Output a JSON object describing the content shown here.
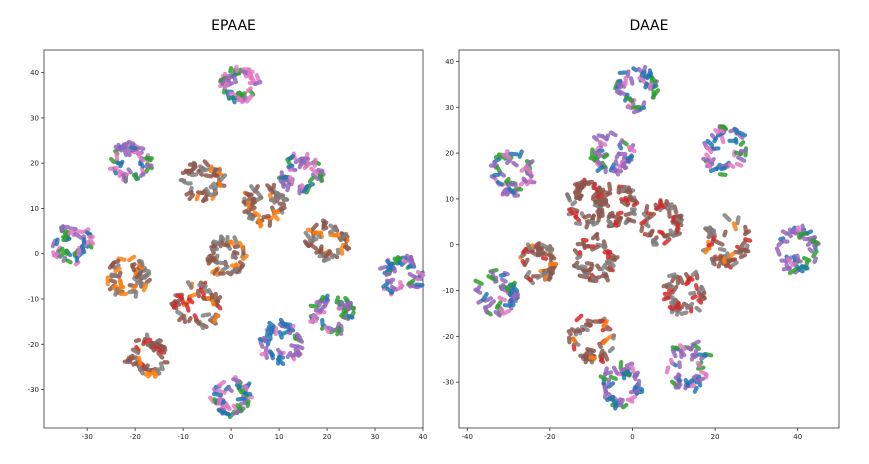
{
  "chart_data": [
    {
      "type": "scatter",
      "title": "EPAAE",
      "xlabel": "",
      "ylabel": "",
      "xlim": [
        -39,
        40
      ],
      "ylim": [
        -38.5,
        45
      ],
      "xticks": [
        -30,
        -20,
        -10,
        0,
        10,
        20,
        30,
        40
      ],
      "yticks": [
        -30,
        -20,
        -10,
        0,
        10,
        20,
        30,
        40
      ],
      "grid": false,
      "colors": [
        "#1f77b4",
        "#ff7f0e",
        "#2ca02c",
        "#d62728",
        "#9467bd",
        "#8c564b",
        "#e377c2",
        "#7f7f7f"
      ],
      "clusters": [
        {
          "center": [
            2,
            37.5
          ],
          "radius": 3.5,
          "colors": [
            "#e377c2",
            "#9467bd",
            "#2ca02c",
            "#1f77b4"
          ]
        },
        {
          "center": [
            -21,
            20.5
          ],
          "radius": 3.8,
          "colors": [
            "#9467bd",
            "#e377c2",
            "#2ca02c",
            "#1f77b4"
          ]
        },
        {
          "center": [
            14.5,
            17.5
          ],
          "radius": 4,
          "colors": [
            "#9467bd",
            "#e377c2",
            "#2ca02c",
            "#1f77b4"
          ]
        },
        {
          "center": [
            -6,
            16
          ],
          "radius": 4,
          "colors": [
            "#8c564b",
            "#7f7f7f",
            "#ff7f0e"
          ]
        },
        {
          "center": [
            7,
            11
          ],
          "radius": 4,
          "colors": [
            "#8c564b",
            "#7f7f7f",
            "#ff7f0e"
          ]
        },
        {
          "center": [
            -33,
            2
          ],
          "radius": 4,
          "colors": [
            "#9467bd",
            "#1f77b4",
            "#e377c2",
            "#2ca02c"
          ]
        },
        {
          "center": [
            -1,
            -0.5
          ],
          "radius": 3.8,
          "colors": [
            "#8c564b",
            "#7f7f7f",
            "#ff7f0e"
          ]
        },
        {
          "center": [
            20,
            2.5
          ],
          "radius": 4,
          "colors": [
            "#8c564b",
            "#7f7f7f",
            "#ff7f0e"
          ]
        },
        {
          "center": [
            35.5,
            -5
          ],
          "radius": 4,
          "colors": [
            "#9467bd",
            "#1f77b4",
            "#e377c2",
            "#2ca02c"
          ]
        },
        {
          "center": [
            -21.5,
            -5
          ],
          "radius": 4,
          "colors": [
            "#8c564b",
            "#7f7f7f",
            "#ff7f0e"
          ]
        },
        {
          "center": [
            -7,
            -11.5
          ],
          "radius": 4.5,
          "colors": [
            "#8c564b",
            "#7f7f7f",
            "#ff7f0e",
            "#d62728"
          ]
        },
        {
          "center": [
            21,
            -13
          ],
          "radius": 4,
          "colors": [
            "#9467bd",
            "#1f77b4",
            "#e377c2",
            "#2ca02c"
          ]
        },
        {
          "center": [
            10.5,
            -19.5
          ],
          "radius": 4,
          "colors": [
            "#9467bd",
            "#1f77b4",
            "#e377c2",
            "#2ca02c"
          ]
        },
        {
          "center": [
            -17.5,
            -22.5
          ],
          "radius": 4,
          "colors": [
            "#8c564b",
            "#7f7f7f",
            "#ff7f0e",
            "#d62728"
          ]
        },
        {
          "center": [
            0,
            -31.5
          ],
          "radius": 3.8,
          "colors": [
            "#9467bd",
            "#1f77b4",
            "#e377c2",
            "#2ca02c"
          ]
        }
      ]
    },
    {
      "type": "scatter",
      "title": "DAAE",
      "xlabel": "",
      "ylabel": "",
      "xlim": [
        -42,
        50
      ],
      "ylim": [
        -40,
        42.5
      ],
      "xticks": [
        -40,
        -20,
        0,
        20,
        40
      ],
      "yticks": [
        -30,
        -20,
        -10,
        0,
        10,
        20,
        30,
        40
      ],
      "grid": false,
      "colors": [
        "#1f77b4",
        "#ff7f0e",
        "#2ca02c",
        "#d62728",
        "#9467bd",
        "#8c564b",
        "#e377c2",
        "#7f7f7f"
      ],
      "clusters": [
        {
          "center": [
            1,
            34
          ],
          "radius": 4.5,
          "colors": [
            "#9467bd",
            "#1f77b4",
            "#e377c2",
            "#2ca02c"
          ]
        },
        {
          "center": [
            -5,
            20.5
          ],
          "radius": 4.5,
          "colors": [
            "#9467bd",
            "#1f77b4",
            "#e377c2",
            "#2ca02c"
          ]
        },
        {
          "center": [
            -29,
            15.5
          ],
          "radius": 4.5,
          "colors": [
            "#9467bd",
            "#e377c2",
            "#2ca02c",
            "#1f77b4"
          ]
        },
        {
          "center": [
            22.5,
            20.5
          ],
          "radius": 5,
          "colors": [
            "#9467bd",
            "#e377c2",
            "#2ca02c",
            "#1f77b4"
          ]
        },
        {
          "center": [
            -11,
            9
          ],
          "radius": 4.5,
          "colors": [
            "#8c564b",
            "#7f7f7f",
            "#d62728"
          ]
        },
        {
          "center": [
            -4,
            8.5
          ],
          "radius": 4.5,
          "colors": [
            "#8c564b",
            "#7f7f7f",
            "#d62728"
          ]
        },
        {
          "center": [
            7,
            4.5
          ],
          "radius": 4.5,
          "colors": [
            "#8c564b",
            "#7f7f7f",
            "#d62728"
          ]
        },
        {
          "center": [
            -23,
            -4
          ],
          "radius": 4,
          "colors": [
            "#8c564b",
            "#7f7f7f",
            "#d62728",
            "#ff7f0e"
          ]
        },
        {
          "center": [
            -9,
            -3
          ],
          "radius": 4.5,
          "colors": [
            "#8c564b",
            "#7f7f7f",
            "#d62728"
          ]
        },
        {
          "center": [
            23,
            0.5
          ],
          "radius": 5,
          "colors": [
            "#8c564b",
            "#7f7f7f",
            "#d62728",
            "#ff7f0e"
          ]
        },
        {
          "center": [
            40,
            -1
          ],
          "radius": 4.5,
          "colors": [
            "#9467bd",
            "#1f77b4",
            "#e377c2",
            "#2ca02c"
          ]
        },
        {
          "center": [
            -33,
            -10.5
          ],
          "radius": 4.5,
          "colors": [
            "#9467bd",
            "#1f77b4",
            "#e377c2",
            "#2ca02c"
          ]
        },
        {
          "center": [
            12.5,
            -10.5
          ],
          "radius": 4.5,
          "colors": [
            "#8c564b",
            "#7f7f7f",
            "#d62728"
          ]
        },
        {
          "center": [
            -10,
            -20.5
          ],
          "radius": 5,
          "colors": [
            "#8c564b",
            "#7f7f7f",
            "#d62728",
            "#ff7f0e"
          ]
        },
        {
          "center": [
            13.5,
            -26.5
          ],
          "radius": 5,
          "colors": [
            "#9467bd",
            "#1f77b4",
            "#e377c2",
            "#2ca02c"
          ]
        },
        {
          "center": [
            -3,
            -30.5
          ],
          "radius": 4.5,
          "colors": [
            "#9467bd",
            "#1f77b4",
            "#e377c2",
            "#2ca02c"
          ]
        }
      ]
    }
  ]
}
